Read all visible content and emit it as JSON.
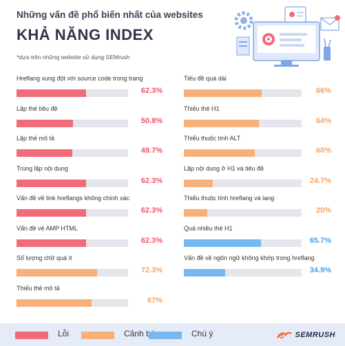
{
  "header": {
    "subtitle": "Những vấn đề phổ biến nhất của websites",
    "title": "KHẢ NĂNG INDEX",
    "note": "*dựa trên những website sử dụng SEMrush"
  },
  "colors": {
    "error": "#f26b7a",
    "warning": "#f7b07a",
    "notice": "#78b8f2",
    "track": "#e4e6ec",
    "error_text": "#ee5565",
    "warning_text": "#f3a366",
    "notice_text": "#4aa0ea"
  },
  "chart_data": {
    "type": "bar",
    "orientation": "horizontal",
    "xlim": [
      0,
      100
    ],
    "columns": [
      {
        "items": [
          {
            "label": "Hreflang xung đột với source code trong trang",
            "value": 62.3,
            "display": "62.3%",
            "category": "error"
          },
          {
            "label": "Lặp thẻ tiêu đề",
            "value": 50.8,
            "display": "50.8%",
            "category": "error"
          },
          {
            "label": "Lặp thẻ mô tả",
            "value": 49.7,
            "display": "49.7%",
            "category": "error"
          },
          {
            "label": "Trùng lặp nội dung",
            "value": 62.3,
            "display": "62.3%",
            "category": "error"
          },
          {
            "label": "Vấn đề về link hreflangs không chính xác",
            "value": 62.3,
            "display": "62.3%",
            "category": "error"
          },
          {
            "label": "Vấn đề về AMP HTML",
            "value": 62.3,
            "display": "62.3%",
            "category": "error"
          },
          {
            "label": "Số lượng chữ quá ít",
            "value": 72.3,
            "display": "72.3%",
            "category": "warning"
          },
          {
            "label": "Thiếu thẻ mô tả",
            "value": 67,
            "display": "67%",
            "category": "warning"
          }
        ]
      },
      {
        "items": [
          {
            "label": "Tiêu đề quá dài",
            "value": 66,
            "display": "66%",
            "category": "warning"
          },
          {
            "label": "Thiếu thẻ H1",
            "value": 64,
            "display": "64%",
            "category": "warning"
          },
          {
            "label": "Thiếu thuộc tính ALT",
            "value": 60,
            "display": "60%",
            "category": "warning"
          },
          {
            "label": "Lặp nội dung ở H1 và tiêu đề",
            "value": 24.7,
            "display": "24.7%",
            "category": "warning"
          },
          {
            "label": "Thiếu thuộc tính hreflang và lang",
            "value": 20,
            "display": "20%",
            "category": "warning"
          },
          {
            "label": "Quá nhiều thẻ H1",
            "value": 65.7,
            "display": "65.7%",
            "category": "notice"
          },
          {
            "label": "Vấn đề về ngôn ngữ không khớp trong hreflang",
            "value": 34.9,
            "display": "34.9%",
            "category": "notice"
          }
        ]
      }
    ],
    "legend": [
      {
        "key": "error",
        "label": "Lỗi"
      },
      {
        "key": "warning",
        "label": "Cảnh báo"
      },
      {
        "key": "notice",
        "label": "Chú ý"
      }
    ]
  },
  "brand": {
    "name": "SEMRUSH",
    "icon": "semrush-fire-icon"
  },
  "illustration": {
    "icon": "website-audit-illustration"
  }
}
